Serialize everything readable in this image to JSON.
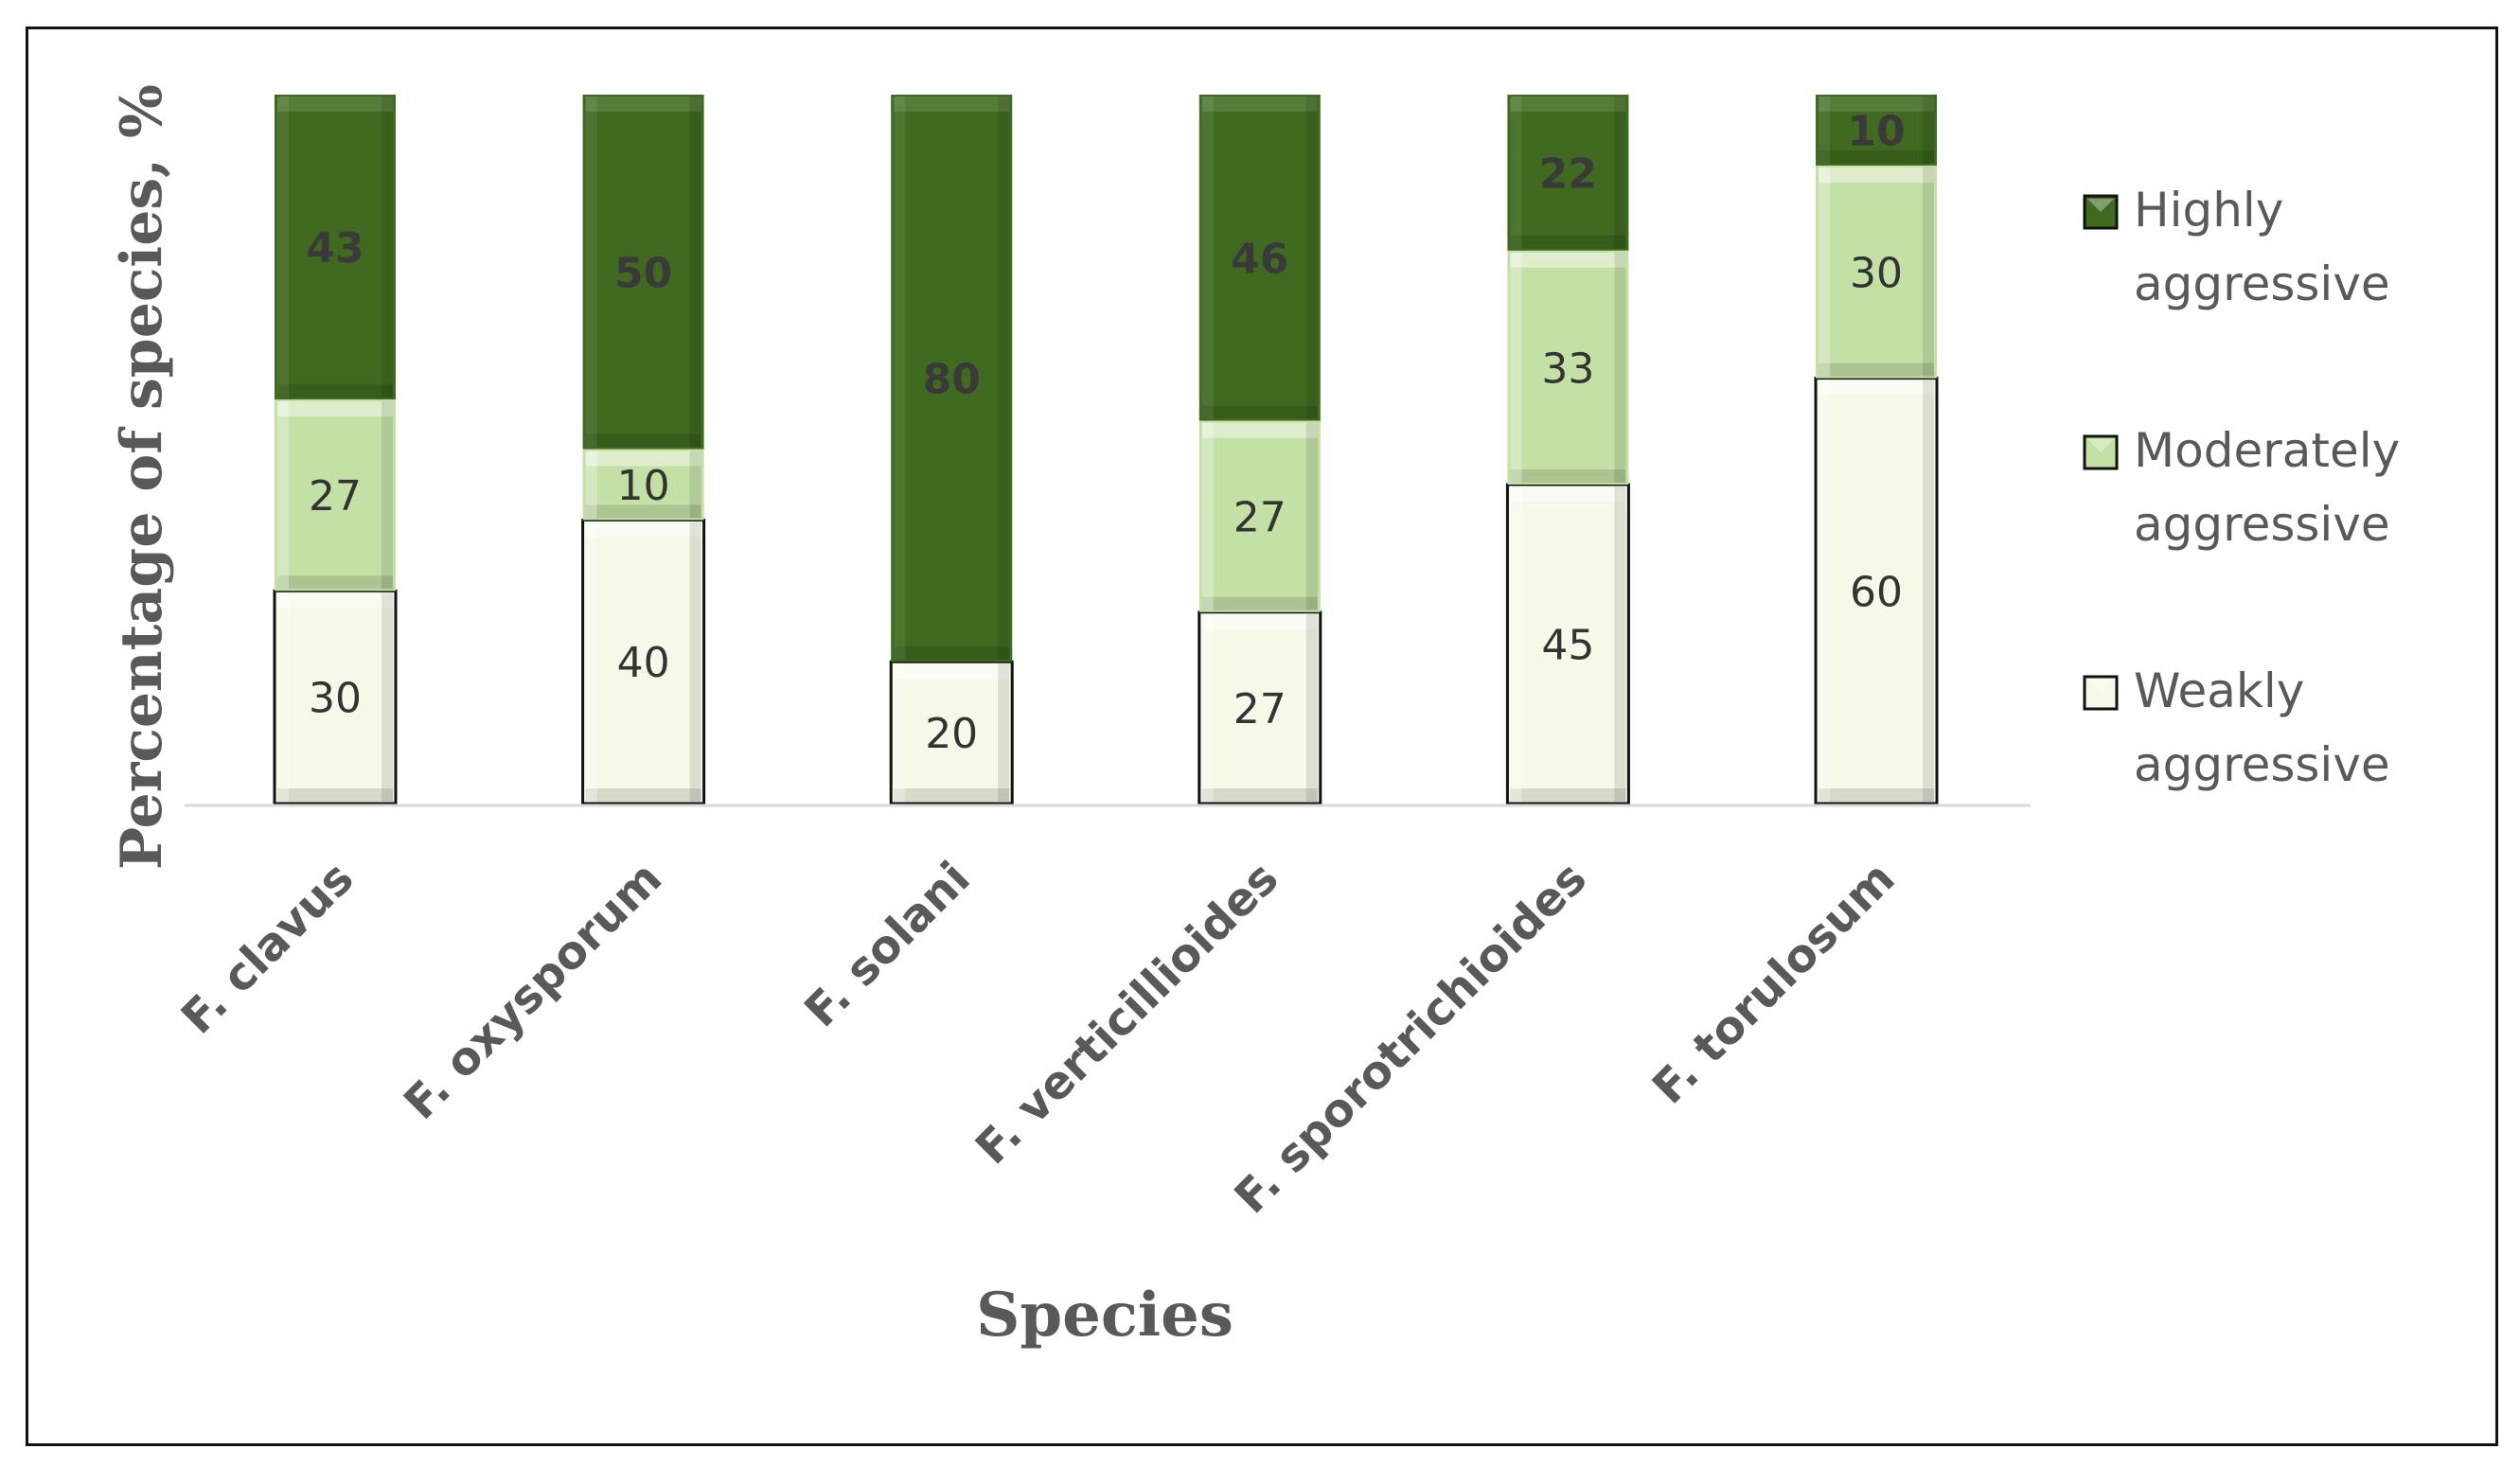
{
  "chart_data": {
    "type": "bar",
    "stacked": true,
    "normalized_100_percent": true,
    "title": "",
    "xlabel": "Species",
    "ylabel": "Percentage of species, %",
    "ylim": [
      0,
      100
    ],
    "grid": false,
    "legend_position": "right",
    "categories": [
      "F. clavus",
      "F. oxysporum",
      "F. solani",
      "F. verticillioides",
      "F. sporotrichioides",
      "F. torulosum"
    ],
    "series": [
      {
        "name": "Weakly aggressive",
        "values": [
          30,
          40,
          20,
          27,
          45,
          60
        ],
        "color": "#f4f9e8",
        "label_color": "#333333"
      },
      {
        "name": "Moderately aggressive",
        "values": [
          27,
          10,
          0,
          27,
          33,
          30
        ],
        "color": "#c3e0a5",
        "label_color": "#333333"
      },
      {
        "name": "Highly aggressive",
        "values": [
          43,
          50,
          80,
          46,
          22,
          10
        ],
        "color": "#3f6a1f",
        "label_color": "#3a3a3a"
      }
    ],
    "legend_order": [
      "Highly aggressive",
      "Moderately aggressive",
      "Weakly aggressive"
    ],
    "legend_lines": {
      "Highly aggressive": [
        "Highly",
        "aggressive"
      ],
      "Moderately aggressive": [
        "Moderately",
        "aggressive"
      ],
      "Weakly aggressive": [
        "Weakly",
        "aggressive"
      ]
    }
  }
}
